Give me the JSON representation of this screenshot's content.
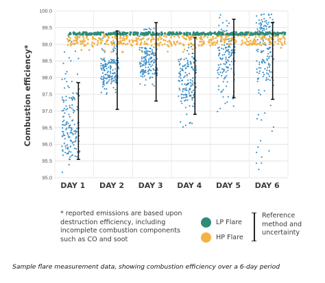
{
  "chart_data": {
    "type": "scatter",
    "ylabel": "Combustion efficiency*",
    "xlabel": "",
    "ylim": [
      95.0,
      100.0
    ],
    "yticks": [
      "95.0",
      "95.5",
      "96.0",
      "96.5",
      "97.0",
      "97.5",
      "98.0",
      "98.5",
      "99.0",
      "99.5",
      "100.0"
    ],
    "categories": [
      "DAY 1",
      "DAY 2",
      "DAY 3",
      "DAY 4",
      "DAY 5",
      "DAY 6"
    ],
    "grid": true,
    "legend_position": "bottom-center",
    "series": [
      {
        "name": "LP Flare",
        "color": "#2e8b7a",
        "level": 99.32,
        "description_values": [
          99.31,
          99.3,
          99.29,
          99.27,
          99.33,
          99.3
        ]
      },
      {
        "name": "HP Flare",
        "color": "#f2b244",
        "level": 99.2,
        "description_values": [
          99.12,
          99.24,
          99.05,
          99.08,
          99.18,
          99.22
        ]
      },
      {
        "name": "",
        "color": "#3a8fc7",
        "day_ranges": [
          {
            "day": "DAY 1",
            "min": 95.1,
            "max": 99.45,
            "center": 96.6
          },
          {
            "day": "DAY 2",
            "min": 97.5,
            "max": 99.2,
            "center": 98.2
          },
          {
            "day": "DAY 3",
            "min": 97.7,
            "max": 99.5,
            "center": 98.5
          },
          {
            "day": "DAY 4",
            "min": 96.5,
            "max": 99.25,
            "center": 98.0
          },
          {
            "day": "DAY 5",
            "min": 96.8,
            "max": 99.95,
            "center": 98.7
          },
          {
            "day": "DAY 6",
            "min": 95.2,
            "max": 99.9,
            "center": 98.9
          }
        ]
      }
    ],
    "reference_bars": [
      {
        "day": "DAY 1",
        "low": 95.55,
        "high": 97.85
      },
      {
        "day": "DAY 2",
        "low": 97.05,
        "high": 99.4
      },
      {
        "day": "DAY 3",
        "low": 97.3,
        "high": 99.65
      },
      {
        "day": "DAY 4",
        "low": 96.9,
        "high": 99.2
      },
      {
        "day": "DAY 5",
        "low": 97.4,
        "high": 99.75
      },
      {
        "day": "DAY 6",
        "low": 97.35,
        "high": 99.65
      }
    ]
  },
  "footnote": "* reported emissions are based upon destruction efficiency, including incomplete combustion components such as CO and soot",
  "legend": {
    "lp": "LP Flare",
    "hp": "HP Flare",
    "ref": "Reference method and uncertainty",
    "lp_color": "#2e8b7a",
    "hp_color": "#f2b244"
  },
  "caption": "Sample flare measurement data, showing combustion efficiency over a 6-day period"
}
